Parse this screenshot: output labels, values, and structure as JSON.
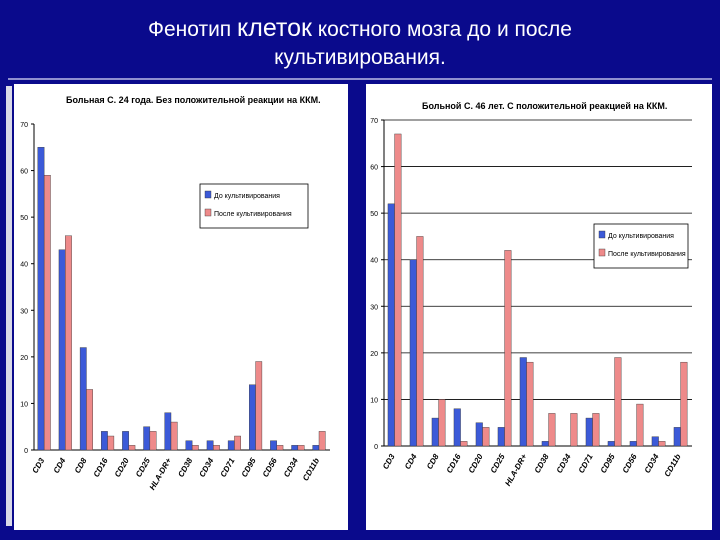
{
  "slide": {
    "title_part1": "Фенотип ",
    "title_emph": "клеток",
    "title_part2": " костного мозга до и после",
    "title_line2": "культивирования."
  },
  "colors": {
    "background": "#0a0a8c",
    "series_before": "#3c5ad8",
    "series_after": "#ee8a8a"
  },
  "chart_data": [
    {
      "type": "bar",
      "title": "Больная С. 24 года. Без положительной реакции на ККМ.",
      "categories": [
        "CD3",
        "CD4",
        "CD8",
        "CD16",
        "CD20",
        "CD25",
        "HLA-DR+",
        "CD38",
        "CD34",
        "CD71",
        "CD95",
        "CD56",
        "CD34",
        "CD11b"
      ],
      "series": [
        {
          "name": "До культивирования",
          "values": [
            65,
            43,
            22,
            4,
            4,
            5,
            8,
            2,
            2,
            2,
            14,
            2,
            1,
            1
          ]
        },
        {
          "name": "После культивирования",
          "values": [
            59,
            46,
            13,
            3,
            1,
            4,
            6,
            1,
            1,
            3,
            19,
            1,
            1,
            4
          ]
        }
      ],
      "ylim": [
        0,
        70
      ],
      "yticks": [
        "0",
        "10",
        "20",
        "30",
        "40",
        "50",
        "60",
        "70"
      ],
      "legend": "center-right",
      "grid": false
    },
    {
      "type": "bar",
      "title": "Больной С. 46 лет. С положительной реакцией на ККМ.",
      "categories": [
        "CD3",
        "CD4",
        "CD8",
        "CD16",
        "CD20",
        "CD25",
        "HLA-DR+",
        "CD38",
        "CD34",
        "CD71",
        "CD95",
        "CD56",
        "CD34",
        "CD11b"
      ],
      "series": [
        {
          "name": "До культивирования",
          "values": [
            52,
            40,
            6,
            8,
            5,
            4,
            19,
            1,
            0,
            6,
            1,
            1,
            2,
            4
          ]
        },
        {
          "name": "После культивирования",
          "values": [
            67,
            45,
            10,
            1,
            4,
            42,
            18,
            7,
            7,
            7,
            19,
            9,
            1,
            18
          ]
        }
      ],
      "ylim": [
        0,
        70
      ],
      "yticks": [
        "0",
        "10",
        "20",
        "30",
        "40",
        "50",
        "60",
        "70"
      ],
      "legend": "center-right",
      "grid": true
    }
  ]
}
